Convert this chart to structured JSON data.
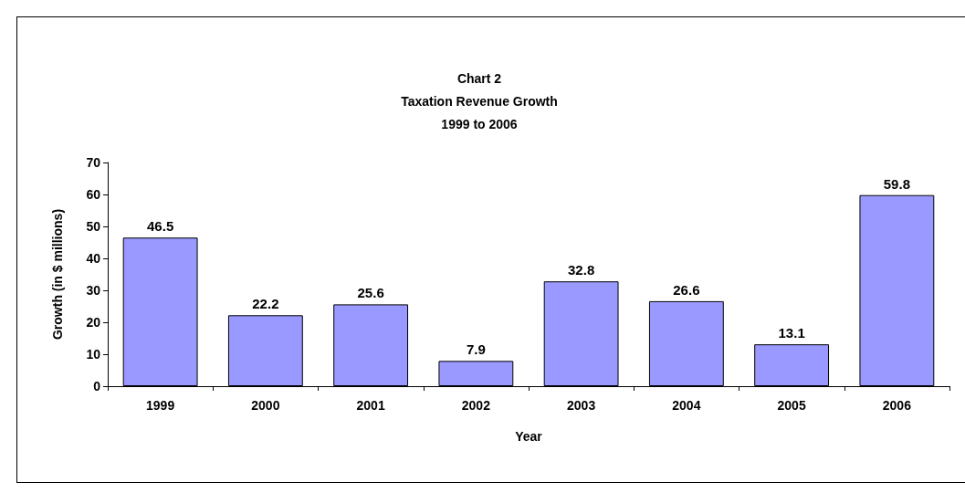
{
  "chart_data": {
    "type": "bar",
    "title": "Chart 2\nTaxation Revenue Growth\n1999 to 2006",
    "xlabel": "Year",
    "ylabel": "Growth (in $ millions)",
    "categories": [
      "1999",
      "2000",
      "2001",
      "2002",
      "2003",
      "2004",
      "2005",
      "2006"
    ],
    "values": [
      46.5,
      22.2,
      25.6,
      7.9,
      32.8,
      26.6,
      13.1,
      59.8
    ],
    "color": "#9999ff",
    "ylim": [
      0,
      70
    ],
    "yticks": [
      0,
      10,
      20,
      30,
      40,
      50,
      60,
      70
    ],
    "grid": false,
    "data_labels": true
  }
}
